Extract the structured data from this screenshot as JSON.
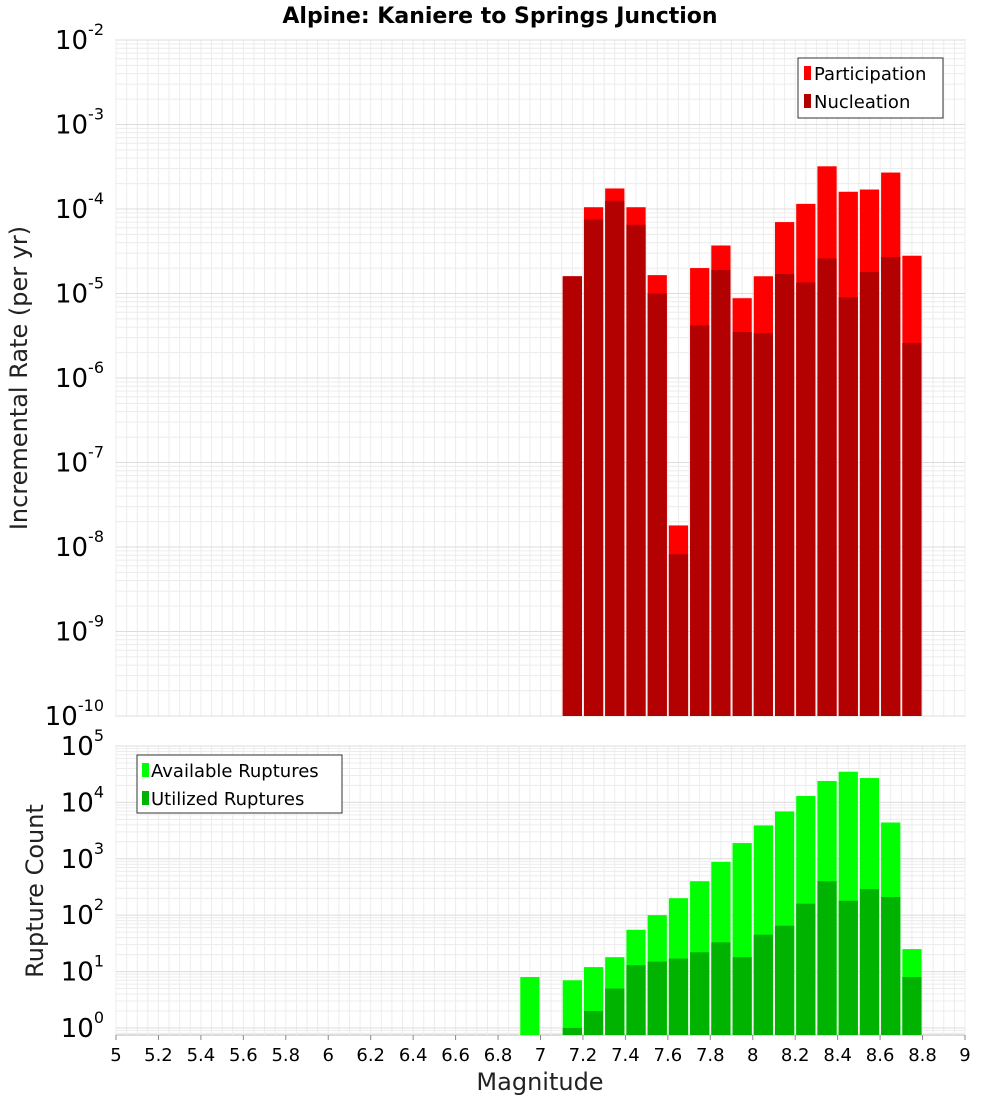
{
  "chart_data": [
    {
      "type": "bar",
      "title": "Alpine: Kaniere to Springs Junction",
      "xlabel": "",
      "ylabel": "Incremental Rate (per yr)",
      "yscale": "log",
      "ylim": [
        1e-10,
        0.01
      ],
      "xlim": [
        5,
        9
      ],
      "grid": true,
      "legend_position": "top-right",
      "colors": {
        "Participation": "#ff0000",
        "Nucleation": "#b30000"
      },
      "x": [
        7.15,
        7.25,
        7.35,
        7.45,
        7.55,
        7.65,
        7.75,
        7.85,
        7.95,
        8.05,
        8.15,
        8.25,
        8.35,
        8.45,
        8.55,
        8.65,
        8.75
      ],
      "series": [
        {
          "name": "Participation",
          "values": [
            1.6e-05,
            0.000105,
            0.000175,
            0.000105,
            1.65e-05,
            1.8e-08,
            2e-05,
            3.7e-05,
            8.8e-06,
            1.6e-05,
            7e-05,
            0.000115,
            0.00032,
            0.00016,
            0.00017,
            0.00027,
            2.8e-05
          ]
        },
        {
          "name": "Nucleation",
          "values": [
            1.6e-05,
            7.5e-05,
            0.000125,
            6.5e-05,
            1e-05,
            8.2e-09,
            4.2e-06,
            1.9e-05,
            3.5e-06,
            3.4e-06,
            1.7e-05,
            1.35e-05,
            2.6e-05,
            9e-06,
            1.8e-05,
            2.7e-05,
            2.6e-06
          ]
        }
      ],
      "yticks": [
        {
          "base": "10",
          "exp": "-10"
        },
        {
          "base": "10",
          "exp": "-9"
        },
        {
          "base": "10",
          "exp": "-8"
        },
        {
          "base": "10",
          "exp": "-7"
        },
        {
          "base": "10",
          "exp": "-6"
        },
        {
          "base": "10",
          "exp": "-5"
        },
        {
          "base": "10",
          "exp": "-4"
        },
        {
          "base": "10",
          "exp": "-3"
        },
        {
          "base": "10",
          "exp": "-2"
        }
      ]
    },
    {
      "type": "bar",
      "title": "",
      "xlabel": "Magnitude",
      "ylabel": "Rupture Count",
      "yscale": "log",
      "ylim": [
        0.75,
        100000
      ],
      "xlim": [
        5,
        9
      ],
      "grid": true,
      "legend_position": "top-left",
      "colors": {
        "Available Ruptures": "#00ff00",
        "Utilized Ruptures": "#00b300"
      },
      "x": [
        6.95,
        7.15,
        7.25,
        7.35,
        7.45,
        7.55,
        7.65,
        7.75,
        7.85,
        7.95,
        8.05,
        8.15,
        8.25,
        8.35,
        8.45,
        8.55,
        8.65,
        8.75
      ],
      "series": [
        {
          "name": "Available Ruptures",
          "values": [
            8,
            7,
            12,
            18,
            55,
            100,
            200,
            400,
            880,
            1900,
            3900,
            6900,
            13000,
            24000,
            35000,
            27000,
            4400,
            25
          ]
        },
        {
          "name": "Utilized Ruptures",
          "values": [
            null,
            1,
            2,
            5,
            13,
            15,
            17,
            22,
            33,
            18,
            45,
            65,
            160,
            400,
            180,
            290,
            210,
            8
          ]
        }
      ],
      "xticks": [
        "5",
        "5.2",
        "5.4",
        "5.6",
        "5.8",
        "6",
        "6.2",
        "6.4",
        "6.6",
        "6.8",
        "7",
        "7.2",
        "7.4",
        "7.6",
        "7.8",
        "8",
        "8.2",
        "8.4",
        "8.6",
        "8.8",
        "9"
      ],
      "yticks": [
        {
          "base": "10",
          "exp": "0"
        },
        {
          "base": "10",
          "exp": "1"
        },
        {
          "base": "10",
          "exp": "2"
        },
        {
          "base": "10",
          "exp": "3"
        },
        {
          "base": "10",
          "exp": "4"
        },
        {
          "base": "10",
          "exp": "5"
        }
      ]
    }
  ]
}
